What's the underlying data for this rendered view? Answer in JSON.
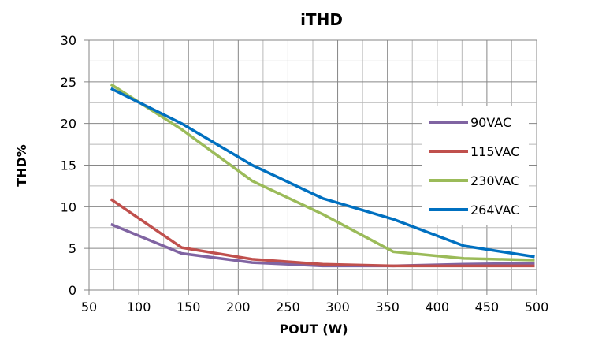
{
  "chart_data": {
    "type": "line",
    "title": "iTHD",
    "xlabel": "POUT (W)",
    "ylabel": "THD%",
    "xlim": [
      50,
      500
    ],
    "ylim": [
      0,
      30
    ],
    "x_ticks": [
      50,
      100,
      150,
      200,
      250,
      300,
      350,
      400,
      450,
      500
    ],
    "y_ticks": [
      0,
      5,
      10,
      15,
      20,
      25,
      30
    ],
    "grid": true,
    "legend_position": "right",
    "x": [
      72,
      143,
      214,
      285,
      356,
      427,
      498
    ],
    "series": [
      {
        "name": "90VAC",
        "color": "#8064a2",
        "values": [
          7.9,
          4.4,
          3.3,
          2.9,
          2.9,
          3.1,
          3.2
        ]
      },
      {
        "name": "115VAC",
        "color": "#c0504d",
        "values": [
          10.9,
          5.1,
          3.7,
          3.1,
          2.9,
          2.9,
          2.9
        ]
      },
      {
        "name": "230VAC",
        "color": "#9bbb59",
        "values": [
          24.7,
          19.3,
          13.1,
          9.1,
          4.6,
          3.8,
          3.6
        ]
      },
      {
        "name": "264VAC",
        "color": "#0070c0",
        "values": [
          24.2,
          20.0,
          15.0,
          11.0,
          8.5,
          5.3,
          4.0
        ]
      }
    ]
  }
}
